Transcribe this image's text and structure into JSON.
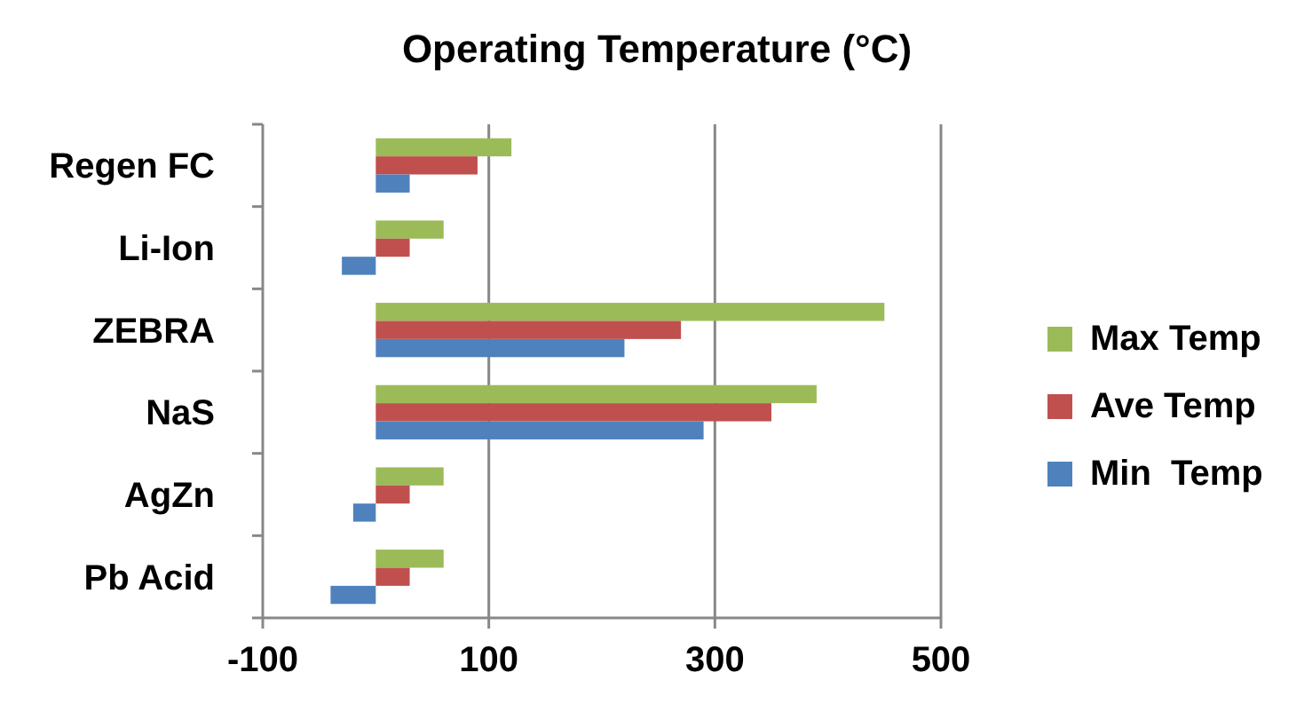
{
  "chart_data": {
    "type": "bar",
    "orientation": "horizontal",
    "title": "Operating Temperature (°C)",
    "categories": [
      "Regen FC",
      "Li-Ion",
      "ZEBRA",
      "NaS",
      "AgZn",
      "Pb Acid"
    ],
    "series": [
      {
        "name": "Max Temp",
        "color": "#9bbb59",
        "values": [
          120,
          60,
          450,
          390,
          60,
          60
        ]
      },
      {
        "name": "Ave Temp",
        "color": "#c0504d",
        "values": [
          90,
          30,
          270,
          350,
          30,
          30
        ]
      },
      {
        "name": "Min  Temp",
        "color": "#4f81bd",
        "values": [
          30,
          -30,
          220,
          290,
          -20,
          -40
        ]
      }
    ],
    "xlim": [
      -100,
      500
    ],
    "xticks": [
      -100,
      100,
      300,
      500
    ],
    "grid": "x",
    "legend": "right"
  }
}
